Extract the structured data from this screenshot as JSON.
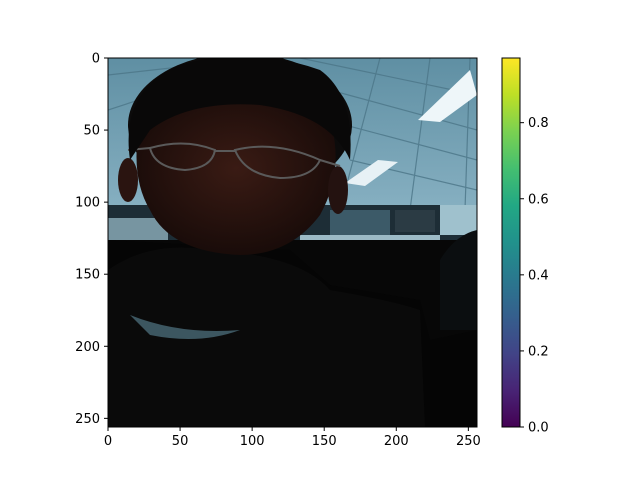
{
  "chart_data": {
    "type": "heatmap",
    "title": "",
    "xlabel": "",
    "ylabel": "",
    "image_extent": {
      "x": [
        0,
        256
      ],
      "y": [
        256,
        0
      ]
    },
    "x_ticks": [
      0,
      50,
      100,
      150,
      200,
      250
    ],
    "y_ticks": [
      0,
      50,
      100,
      150,
      200,
      250
    ],
    "colorbar": {
      "colormap": "viridis",
      "range": [
        0,
        0.97
      ],
      "ticks": [
        0.0,
        0.2,
        0.4,
        0.6,
        0.8
      ],
      "tick_labels": [
        "0.0",
        "0.2",
        "0.4",
        "0.6",
        "0.8"
      ]
    },
    "image_content": "photograph of a man with glasses in an office with a ceiling-lit background"
  }
}
